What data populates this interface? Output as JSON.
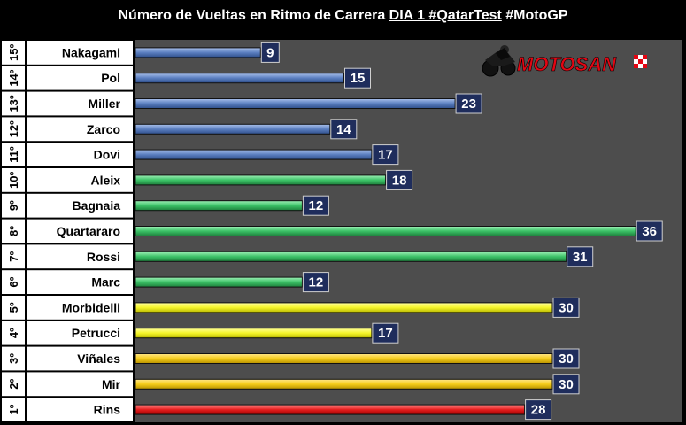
{
  "title": {
    "prefix": "Número de Vueltas en Ritmo de Carrera ",
    "highlight": "DIA 1 #QatarTest",
    "suffix": " #MotoGP"
  },
  "watermark": {
    "text": "MOTOSAN",
    "icon": "motorcycle-rider-icon",
    "color": "#e30613"
  },
  "colors": {
    "blue": "#5b7fc0",
    "green": "#3cc267",
    "yellow": "#f5f52a",
    "gold": "#f5cc1a",
    "red": "#e61e1e",
    "label_box": "#1f2d5c",
    "plot_bg": "#4d4d4d"
  },
  "chart_data": {
    "type": "bar",
    "orientation": "horizontal",
    "title": "Número de Vueltas en Ritmo de Carrera DIA 1 #QatarTest #MotoGP",
    "xlim": [
      0,
      38
    ],
    "categories": [
      "Nakagami",
      "Pol",
      "Miller",
      "Zarco",
      "Dovi",
      "Aleix",
      "Bagnaia",
      "Quartararo",
      "Rossi",
      "Marc",
      "Morbidelli",
      "Petrucci",
      "Viñales",
      "Mir",
      "Rins"
    ],
    "positions": [
      "15º",
      "14º",
      "13º",
      "12º",
      "11º",
      "10º",
      "9º",
      "8º",
      "7º",
      "6º",
      "5º",
      "4º",
      "3º",
      "2º",
      "1º"
    ],
    "values": [
      9,
      15,
      23,
      14,
      17,
      18,
      12,
      36,
      31,
      12,
      30,
      17,
      30,
      30,
      28
    ],
    "bar_colors": [
      "blue",
      "blue",
      "blue",
      "blue",
      "blue",
      "green",
      "green",
      "green",
      "green",
      "green",
      "yellow",
      "yellow",
      "gold",
      "gold",
      "red"
    ],
    "grid": false
  }
}
